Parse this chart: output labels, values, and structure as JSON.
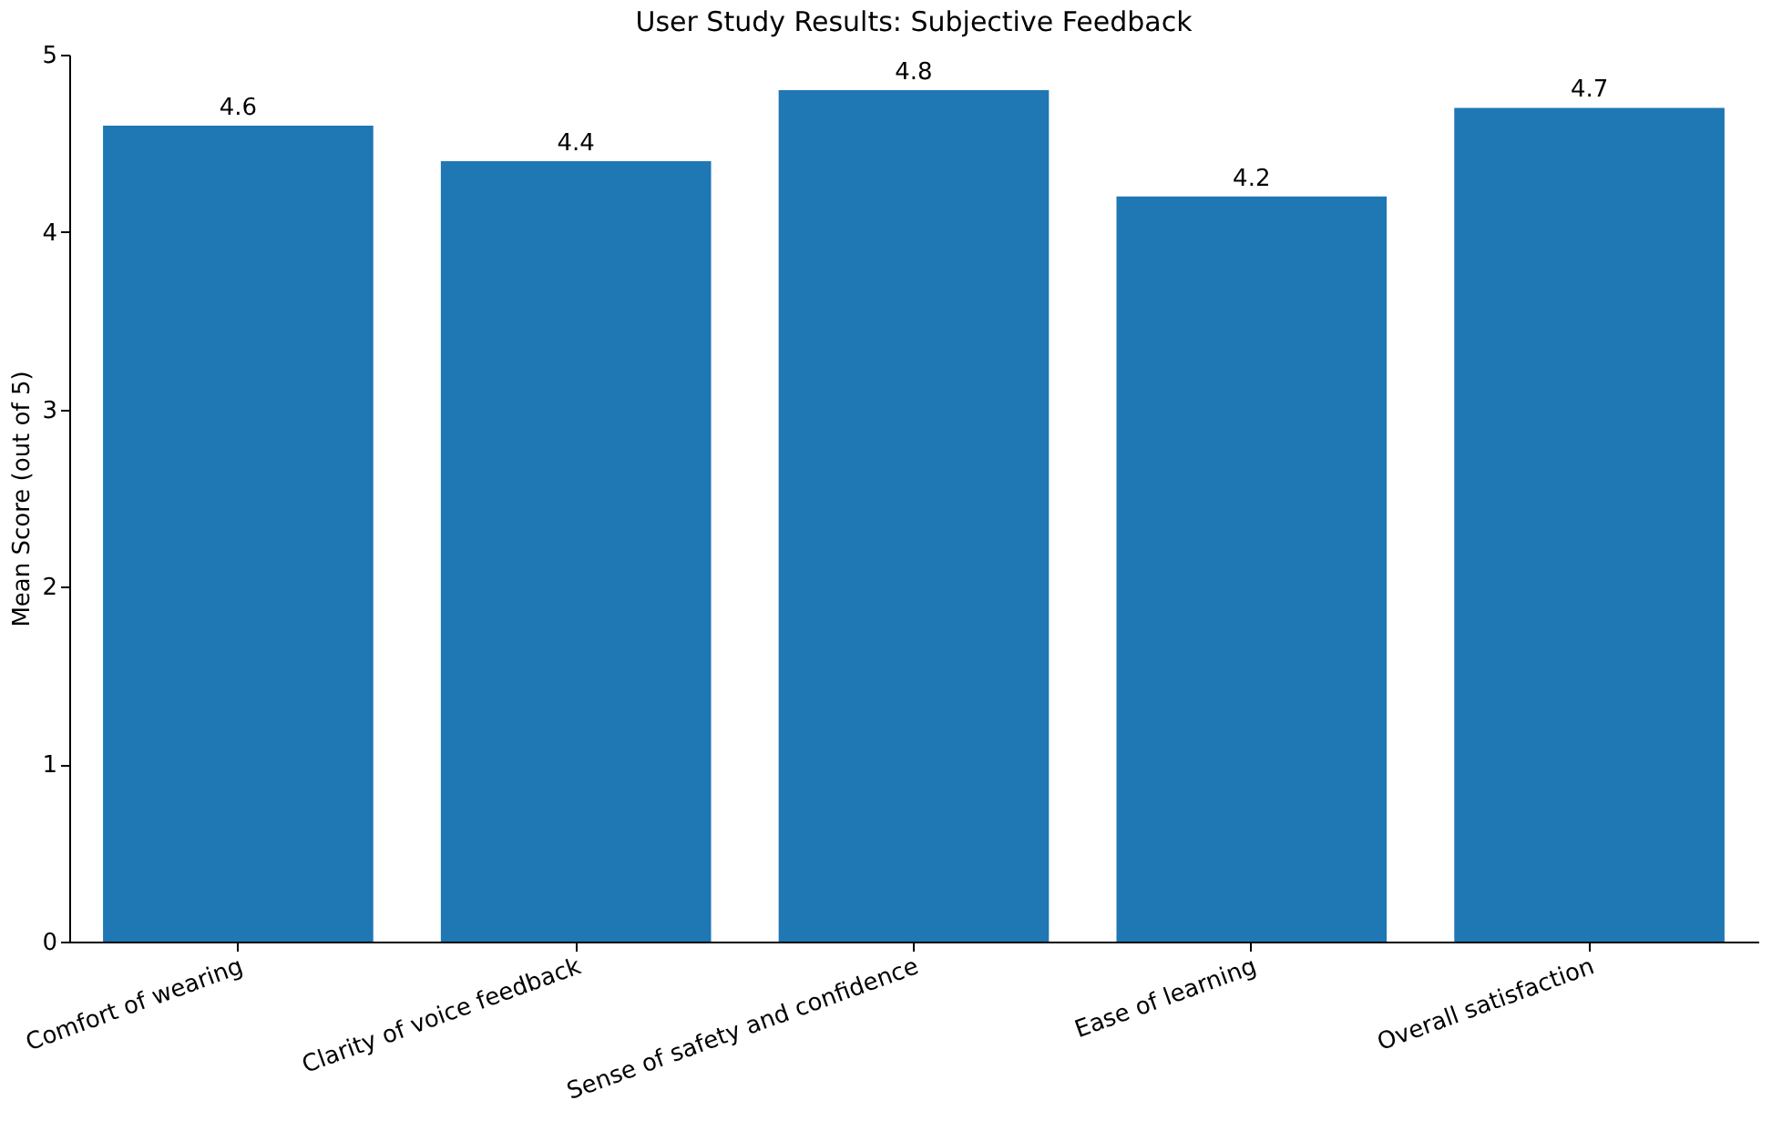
{
  "chart_data": {
    "type": "bar",
    "title": "User Study Results: Subjective Feedback",
    "ylabel": "Mean Score (out of 5)",
    "categories": [
      "Comfort of wearing",
      "Clarity of voice feedback",
      "Sense of safety and confidence",
      "Ease of learning",
      "Overall satisfaction"
    ],
    "values": [
      4.6,
      4.4,
      4.8,
      4.2,
      4.7
    ],
    "color": "#1f77b4",
    "ylim": [
      0,
      5
    ],
    "yticks": [
      0,
      1,
      2,
      3,
      4,
      5
    ],
    "grid": false,
    "data_labels": true
  }
}
